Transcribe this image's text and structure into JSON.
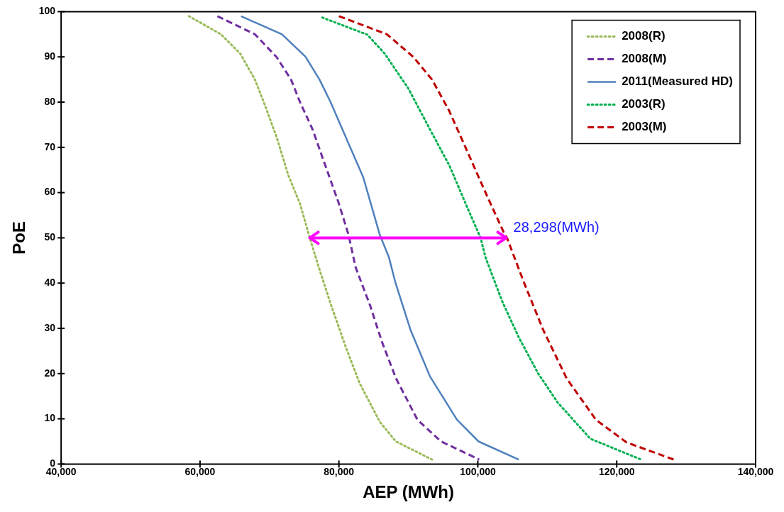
{
  "chart_data": {
    "type": "line",
    "xlabel": "AEP (MWh)",
    "ylabel": "PoE",
    "xlim": [
      40000,
      140000
    ],
    "xticks": [
      {
        "value": 40000,
        "label": "40,000"
      },
      {
        "value": 60000,
        "label": "60,000"
      },
      {
        "value": 80000,
        "label": "80,000"
      },
      {
        "value": 100000,
        "label": "100,000"
      },
      {
        "value": 120000,
        "label": "120,000"
      },
      {
        "value": 140000,
        "label": "140,000"
      }
    ],
    "ylim": [
      0,
      100
    ],
    "yticks": [
      0,
      10,
      20,
      30,
      40,
      50,
      60,
      70,
      80,
      90,
      100
    ],
    "grid": false,
    "legend": "top right",
    "marker": "none",
    "annotations": [
      {
        "text": "28,298(MWh)",
        "x": 104100,
        "y": 50
      }
    ],
    "series": [
      {
        "name": "2008(R)",
        "color": "#9bbb59",
        "line_style": "dotted",
        "x": [
          58400,
          63000,
          65800,
          67900,
          69300,
          71000,
          72700,
          74400,
          75800,
          77200,
          78900,
          81000,
          83000,
          85900,
          88200,
          93400
        ],
        "values": [
          99,
          95,
          90.7,
          85,
          79.5,
          72.4,
          63.9,
          57.5,
          50,
          43,
          35,
          25.8,
          17.8,
          9.3,
          5,
          1
        ]
      },
      {
        "name": "2008(M)",
        "color": "#7030a0",
        "line_style": "dashed",
        "x": [
          62500,
          67900,
          71000,
          73100,
          74400,
          76200,
          77900,
          79900,
          81400,
          82400,
          84500,
          86200,
          88200,
          91300,
          94700,
          100200
        ],
        "values": [
          99,
          95,
          90,
          85,
          80,
          74,
          66.6,
          58,
          50.6,
          43.5,
          35,
          27,
          19,
          9.8,
          5,
          1
        ]
      },
      {
        "name": "2011(Measured HD)",
        "color": "#4f81bd",
        "line_style": "solid",
        "x": [
          65900,
          71800,
          75200,
          77200,
          78800,
          81400,
          83500,
          85900,
          87200,
          88100,
          90300,
          93100,
          97000,
          100100,
          105900
        ],
        "values": [
          99,
          95,
          90,
          85,
          80,
          70.8,
          63.4,
          50.6,
          45.7,
          40.3,
          29.7,
          19.4,
          9.8,
          5,
          1
        ]
      },
      {
        "name": "2003(R)",
        "color": "#00b050",
        "line_style": "dotted",
        "x": [
          77600,
          84100,
          86600,
          90000,
          93100,
          95900,
          98600,
          100400,
          101100,
          103500,
          105900,
          108700,
          111500,
          116200,
          123500
        ],
        "values": [
          98.7,
          94.9,
          90.7,
          83,
          74,
          66,
          56.3,
          50,
          45.7,
          36,
          28,
          20,
          13.6,
          5.6,
          1
        ]
      },
      {
        "name": "2003(M)",
        "color": "#c00000",
        "line_style": "dashed",
        "x": [
          80000,
          86900,
          90700,
          93400,
          95900,
          98600,
          101400,
          103800,
          104200,
          106600,
          109400,
          112800,
          117000,
          121400,
          128200
        ],
        "values": [
          99,
          95,
          90,
          85,
          78,
          68.7,
          59,
          51,
          50,
          40.3,
          29.7,
          18.9,
          9.8,
          4.8,
          1
        ]
      }
    ]
  }
}
